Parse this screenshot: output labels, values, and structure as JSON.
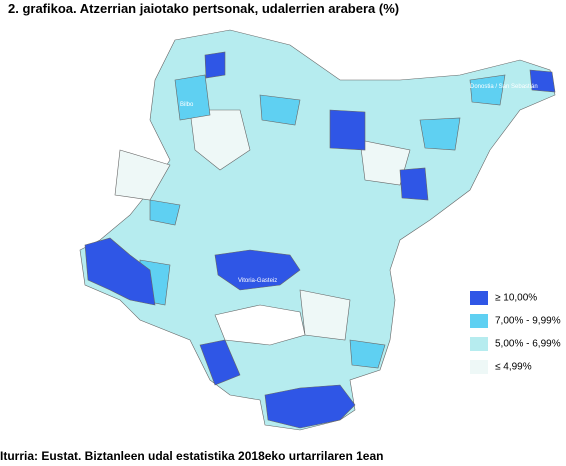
{
  "title": "2. grafikoa. Atzerrian jaiotako pertsonak, udalerrien arabera (%)",
  "legend": [
    {
      "label": "≥ 10,00%",
      "color": "#2f56e6"
    },
    {
      "label": "7,00% - 9,99%",
      "color": "#5fd0f2"
    },
    {
      "label": "5,00% - 6,99%",
      "color": "#b6ecef"
    },
    {
      "label": "≤ 4,99%",
      "color": "#eef8f7"
    }
  ],
  "cities": [
    "Bilbo",
    "Donostia / San Sebastián",
    "Vitoria-Gasteiz"
  ],
  "source": "Iturria: Eustat. Biztanleen udal estatistika 2018eko urtarrilaren 1ean"
}
